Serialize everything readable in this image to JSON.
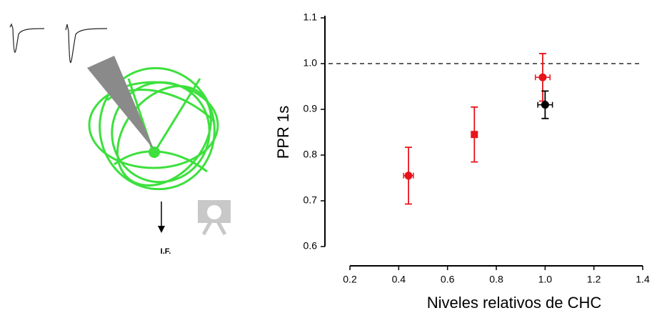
{
  "illustration": {
    "label": "I.F."
  },
  "chart_data": {
    "type": "scatter",
    "xlabel": "Niveles relativos de CHC",
    "ylabel": "PPR 1s",
    "xlim": [
      0.2,
      1.4
    ],
    "xticks": [
      0.2,
      0.4,
      0.6,
      0.8,
      {
        "value": 1,
        "label": "1.0"
      },
      1.2,
      1.4
    ],
    "ylim": [
      0.6,
      1.1
    ],
    "yticks": [
      0.6,
      0.7,
      0.8,
      0.9,
      {
        "value": 1,
        "label": "1.0"
      },
      1.1
    ],
    "reference_line": 1,
    "series": [
      {
        "color": "#e8141b",
        "x": [
          0.44,
          0.71,
          0.99
        ],
        "values": [
          0.755,
          0.845,
          0.97
        ],
        "y_err": [
          0.062,
          0.06,
          0.052
        ],
        "x_err": [
          0.02,
          0,
          0.03
        ],
        "markers": [
          "circle",
          "square",
          "circle"
        ]
      },
      {
        "color": "#000000",
        "x": [
          1.0
        ],
        "values": [
          0.91
        ],
        "y_err": [
          0.03
        ],
        "x_err": [
          0.03
        ],
        "markers": [
          "circle"
        ]
      }
    ]
  }
}
